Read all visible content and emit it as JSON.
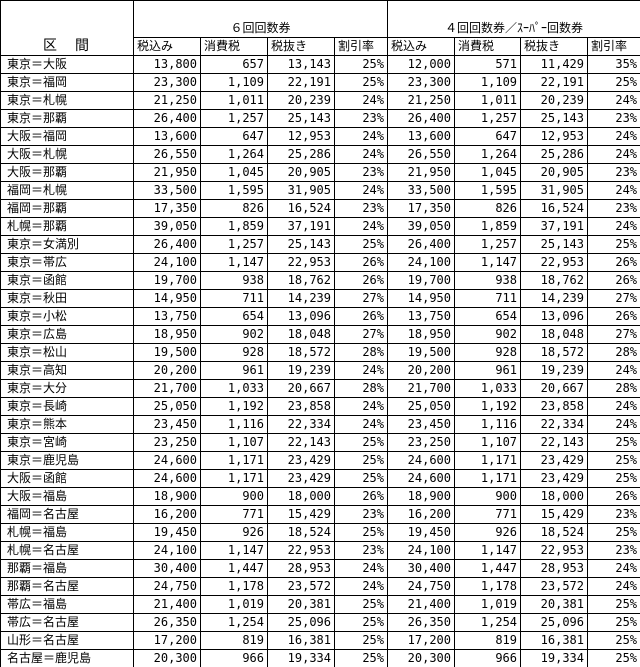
{
  "header": {
    "section": "区　間",
    "group1": "６回回数券",
    "group2": "４回回数券／ｽｰﾊﾟｰ回数券",
    "columns": [
      "税込み",
      "消費税",
      "税抜き",
      "割引率",
      "税込み",
      "消費税",
      "税抜き",
      "割引率"
    ]
  },
  "rows": [
    [
      "東京＝大阪",
      "13,800",
      "657",
      "13,143",
      "25%",
      "12,000",
      "571",
      "11,429",
      "35%"
    ],
    [
      "東京＝福岡",
      "23,300",
      "1,109",
      "22,191",
      "25%",
      "23,300",
      "1,109",
      "22,191",
      "25%"
    ],
    [
      "東京＝札幌",
      "21,250",
      "1,011",
      "20,239",
      "24%",
      "21,250",
      "1,011",
      "20,239",
      "24%"
    ],
    [
      "東京＝那覇",
      "26,400",
      "1,257",
      "25,143",
      "23%",
      "26,400",
      "1,257",
      "25,143",
      "23%"
    ],
    [
      "大阪＝福岡",
      "13,600",
      "647",
      "12,953",
      "24%",
      "13,600",
      "647",
      "12,953",
      "24%"
    ],
    [
      "大阪＝札幌",
      "26,550",
      "1,264",
      "25,286",
      "24%",
      "26,550",
      "1,264",
      "25,286",
      "24%"
    ],
    [
      "大阪＝那覇",
      "21,950",
      "1,045",
      "20,905",
      "23%",
      "21,950",
      "1,045",
      "20,905",
      "23%"
    ],
    [
      "福岡＝札幌",
      "33,500",
      "1,595",
      "31,905",
      "24%",
      "33,500",
      "1,595",
      "31,905",
      "24%"
    ],
    [
      "福岡＝那覇",
      "17,350",
      "826",
      "16,524",
      "23%",
      "17,350",
      "826",
      "16,524",
      "23%"
    ],
    [
      "札幌＝那覇",
      "39,050",
      "1,859",
      "37,191",
      "24%",
      "39,050",
      "1,859",
      "37,191",
      "24%"
    ],
    [
      "東京＝女満別",
      "26,400",
      "1,257",
      "25,143",
      "25%",
      "26,400",
      "1,257",
      "25,143",
      "25%"
    ],
    [
      "東京＝帯広",
      "24,100",
      "1,147",
      "22,953",
      "26%",
      "24,100",
      "1,147",
      "22,953",
      "26%"
    ],
    [
      "東京＝函館",
      "19,700",
      "938",
      "18,762",
      "26%",
      "19,700",
      "938",
      "18,762",
      "26%"
    ],
    [
      "東京＝秋田",
      "14,950",
      "711",
      "14,239",
      "27%",
      "14,950",
      "711",
      "14,239",
      "27%"
    ],
    [
      "東京＝小松",
      "13,750",
      "654",
      "13,096",
      "26%",
      "13,750",
      "654",
      "13,096",
      "26%"
    ],
    [
      "東京＝広島",
      "18,950",
      "902",
      "18,048",
      "27%",
      "18,950",
      "902",
      "18,048",
      "27%"
    ],
    [
      "東京＝松山",
      "19,500",
      "928",
      "18,572",
      "28%",
      "19,500",
      "928",
      "18,572",
      "28%"
    ],
    [
      "東京＝高知",
      "20,200",
      "961",
      "19,239",
      "24%",
      "20,200",
      "961",
      "19,239",
      "24%"
    ],
    [
      "東京＝大分",
      "21,700",
      "1,033",
      "20,667",
      "28%",
      "21,700",
      "1,033",
      "20,667",
      "28%"
    ],
    [
      "東京＝長崎",
      "25,050",
      "1,192",
      "23,858",
      "24%",
      "25,050",
      "1,192",
      "23,858",
      "24%"
    ],
    [
      "東京＝熊本",
      "23,450",
      "1,116",
      "22,334",
      "24%",
      "23,450",
      "1,116",
      "22,334",
      "24%"
    ],
    [
      "東京＝宮崎",
      "23,250",
      "1,107",
      "22,143",
      "25%",
      "23,250",
      "1,107",
      "22,143",
      "25%"
    ],
    [
      "東京＝鹿児島",
      "24,600",
      "1,171",
      "23,429",
      "25%",
      "24,600",
      "1,171",
      "23,429",
      "25%"
    ],
    [
      "大阪＝函館",
      "24,600",
      "1,171",
      "23,429",
      "25%",
      "24,600",
      "1,171",
      "23,429",
      "25%"
    ],
    [
      "大阪＝福島",
      "18,900",
      "900",
      "18,000",
      "26%",
      "18,900",
      "900",
      "18,000",
      "26%"
    ],
    [
      "福岡＝名古屋",
      "16,200",
      "771",
      "15,429",
      "23%",
      "16,200",
      "771",
      "15,429",
      "23%"
    ],
    [
      "札幌＝福島",
      "19,450",
      "926",
      "18,524",
      "25%",
      "19,450",
      "926",
      "18,524",
      "25%"
    ],
    [
      "札幌＝名古屋",
      "24,100",
      "1,147",
      "22,953",
      "23%",
      "24,100",
      "1,147",
      "22,953",
      "23%"
    ],
    [
      "那覇＝福島",
      "30,400",
      "1,447",
      "28,953",
      "24%",
      "30,400",
      "1,447",
      "28,953",
      "24%"
    ],
    [
      "那覇＝名古屋",
      "24,750",
      "1,178",
      "23,572",
      "24%",
      "24,750",
      "1,178",
      "23,572",
      "24%"
    ],
    [
      "帯広＝福島",
      "21,400",
      "1,019",
      "20,381",
      "25%",
      "21,400",
      "1,019",
      "20,381",
      "25%"
    ],
    [
      "帯広＝名古屋",
      "26,350",
      "1,254",
      "25,096",
      "25%",
      "26,350",
      "1,254",
      "25,096",
      "25%"
    ],
    [
      "山形＝名古屋",
      "17,200",
      "819",
      "16,381",
      "25%",
      "17,200",
      "819",
      "16,381",
      "25%"
    ],
    [
      "名古屋＝鹿児島",
      "20,300",
      "966",
      "19,334",
      "25%",
      "20,300",
      "966",
      "19,334",
      "25%"
    ]
  ]
}
